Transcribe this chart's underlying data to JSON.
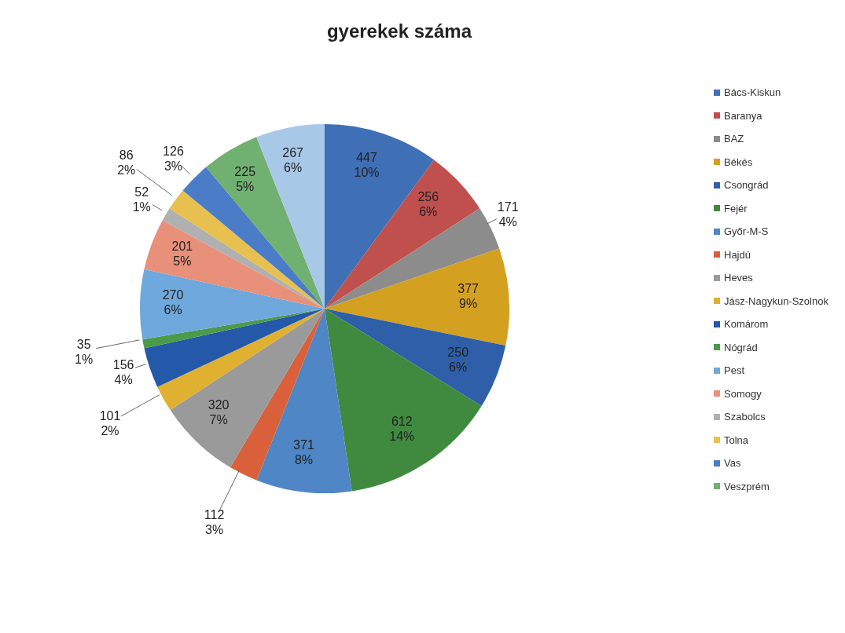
{
  "chart_data": {
    "type": "pie",
    "title": "gyerekek száma",
    "categories": [
      "Bács-Kiskun",
      "Baranya",
      "BAZ",
      "Békés",
      "Csongrád",
      "Fejér",
      "Győr-M-S",
      "Hajdú",
      "Heves",
      "Jász-Nagykun-Szolnok",
      "Komárom",
      "Nógrád",
      "Pest",
      "Somogy",
      "Szabolcs",
      "Tolna",
      "Vas",
      "Veszprém",
      null
    ],
    "values": [
      447,
      256,
      171,
      377,
      250,
      612,
      371,
      112,
      320,
      101,
      156,
      35,
      270,
      201,
      52,
      86,
      126,
      225,
      267
    ],
    "colors": [
      "#3f6fb5",
      "#c0504d",
      "#8c8c8c",
      "#d4a020",
      "#2f5fa8",
      "#3f8a3f",
      "#4f86c6",
      "#d9603a",
      "#9a9a9a",
      "#e0b030",
      "#2458a8",
      "#4a9a4a",
      "#6fa8dc",
      "#e8907a",
      "#b0b0b0",
      "#e8c050",
      "#4a7cc8",
      "#70b070",
      "#a8c8e8"
    ],
    "value_labels": [
      "447\n10%",
      "256\n6%",
      "171\n4%",
      "377\n9%",
      "250\n6%",
      "612\n14%",
      "371\n8%",
      "112\n3%",
      "320\n7%",
      "101\n2%",
      "156\n4%",
      "35\n1%",
      "270\n6%",
      "201\n5%",
      "52\n1%",
      "86\n2%",
      "126\n3%",
      "225\n5%",
      "267\n6%"
    ],
    "legend": "right"
  }
}
